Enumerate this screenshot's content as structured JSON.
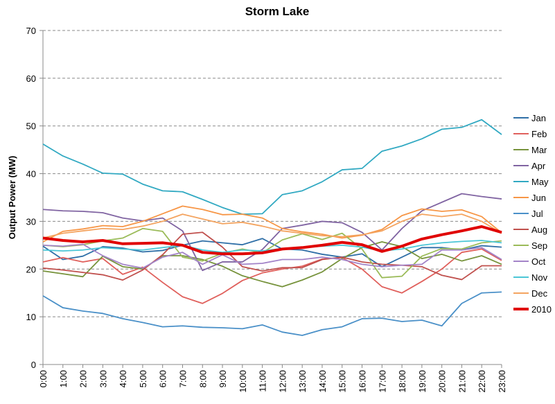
{
  "chart_data": {
    "type": "line",
    "title": "Storm Lake",
    "y_label": "Output Power (MW)",
    "categories": [
      "0:00",
      "1:00",
      "2:00",
      "3:00",
      "4:00",
      "5:00",
      "6:00",
      "7:00",
      "8:00",
      "9:00",
      "10:00",
      "11:00",
      "12:00",
      "13:00",
      "14:00",
      "15:00",
      "16:00",
      "17:00",
      "18:00",
      "19:00",
      "20:00",
      "21:00",
      "22:00",
      "23:00"
    ],
    "ylim": [
      0,
      70
    ],
    "yticks": [
      0,
      10,
      20,
      30,
      40,
      50,
      60,
      70
    ],
    "grid": true,
    "legend": "right",
    "series": [
      {
        "name": "Jan",
        "color": "#2f6fa7",
        "values": [
          24.8,
          22.0,
          22.7,
          24.7,
          24.4,
          23.6,
          23.9,
          25.0,
          25.9,
          25.5,
          25.1,
          26.4,
          24.2,
          24.0,
          23.1,
          22.5,
          23.2,
          20.5,
          22.5,
          24.5,
          24.5,
          24.0,
          24.9,
          24.6
        ]
      },
      {
        "name": "Feb",
        "color": "#e0605c",
        "values": [
          21.5,
          22.4,
          21.5,
          22.2,
          18.9,
          20.4,
          17.2,
          14.2,
          12.8,
          14.9,
          17.6,
          19.2,
          20.0,
          20.6,
          22.1,
          22.4,
          20.0,
          16.3,
          15.0,
          17.4,
          20.0,
          23.5,
          24.2,
          21.8
        ]
      },
      {
        "name": "Mar",
        "color": "#77933c",
        "values": [
          19.6,
          19.0,
          18.4,
          22.7,
          20.5,
          20.0,
          22.8,
          22.8,
          22.0,
          20.6,
          18.6,
          17.4,
          16.3,
          17.7,
          19.4,
          22.2,
          24.5,
          25.7,
          24.7,
          22.2,
          23.1,
          21.7,
          22.8,
          21.0
        ]
      },
      {
        "name": "Apr",
        "color": "#8064a2",
        "values": [
          32.5,
          32.2,
          32.1,
          31.8,
          30.7,
          30.1,
          30.7,
          28.0,
          19.7,
          21.5,
          21.5,
          24.1,
          28.5,
          29.2,
          30.0,
          29.7,
          27.7,
          24.0,
          28.5,
          32.2,
          34.0,
          35.8,
          35.2,
          34.7
        ]
      },
      {
        "name": "May",
        "color": "#31a9c2",
        "values": [
          46.2,
          43.7,
          42.0,
          40.1,
          39.9,
          37.8,
          36.4,
          36.2,
          34.6,
          32.9,
          31.5,
          31.6,
          35.6,
          36.4,
          38.3,
          40.8,
          41.1,
          44.7,
          45.8,
          47.3,
          49.3,
          49.7,
          51.3,
          48.2
        ]
      },
      {
        "name": "Jun",
        "color": "#f79646",
        "values": [
          25.7,
          27.9,
          28.4,
          29.1,
          28.9,
          30.0,
          31.6,
          33.2,
          32.5,
          31.4,
          31.5,
          30.7,
          28.5,
          27.8,
          27.3,
          26.5,
          27.1,
          28.3,
          31.2,
          32.6,
          32.1,
          32.4,
          31.0,
          27.6
        ]
      },
      {
        "name": "Jul",
        "color": "#4a90c8",
        "values": [
          14.4,
          11.9,
          11.2,
          10.7,
          9.6,
          8.8,
          7.9,
          8.1,
          7.8,
          7.7,
          7.5,
          8.3,
          6.8,
          6.1,
          7.3,
          7.9,
          9.6,
          9.7,
          9.0,
          9.3,
          8.1,
          12.8,
          15.0,
          15.2
        ]
      },
      {
        "name": "Aug",
        "color": "#c0504d",
        "values": [
          20.2,
          19.8,
          19.3,
          18.8,
          17.7,
          19.8,
          23.0,
          27.3,
          27.7,
          24.6,
          20.5,
          19.6,
          20.3,
          20.3,
          22.0,
          22.5,
          21.5,
          21.0,
          20.8,
          20.5,
          18.7,
          17.8,
          20.7,
          20.7
        ]
      },
      {
        "name": "Sep",
        "color": "#9bbb59",
        "values": [
          25.0,
          24.7,
          25.1,
          25.9,
          26.5,
          28.5,
          27.9,
          22.5,
          21.7,
          23.3,
          24.2,
          23.4,
          26.1,
          27.4,
          26.2,
          27.5,
          24.2,
          18.2,
          18.5,
          22.7,
          24.3,
          24.2,
          25.5,
          25.9
        ]
      },
      {
        "name": "Oct",
        "color": "#a384c8",
        "values": [
          25.0,
          24.8,
          25.2,
          22.8,
          21.0,
          20.2,
          22.5,
          23.5,
          21.0,
          23.0,
          21.0,
          21.2,
          22.0,
          22.0,
          22.5,
          22.0,
          21.0,
          20.5,
          20.8,
          21.0,
          24.0,
          24.0,
          24.5,
          22.0
        ]
      },
      {
        "name": "Nov",
        "color": "#4bc6d6",
        "values": [
          24.0,
          23.8,
          24.0,
          24.5,
          24.2,
          24.0,
          24.5,
          25.0,
          24.0,
          23.5,
          24.0,
          23.8,
          24.3,
          24.5,
          24.8,
          25.0,
          24.6,
          23.8,
          24.2,
          25.0,
          25.5,
          25.8,
          26.0,
          25.5
        ]
      },
      {
        "name": "Dec",
        "color": "#f4a460",
        "values": [
          26.5,
          27.5,
          28.0,
          28.5,
          28.3,
          29.0,
          30.0,
          31.5,
          30.5,
          29.5,
          29.8,
          29.0,
          28.0,
          27.5,
          27.0,
          26.8,
          27.2,
          28.0,
          30.0,
          31.5,
          31.0,
          31.5,
          30.0,
          27.5
        ]
      },
      {
        "name": "2010",
        "color": "#e00000",
        "width": 4,
        "values": [
          26.5,
          26.0,
          25.7,
          26.0,
          25.3,
          25.4,
          25.5,
          25.0,
          23.5,
          23.2,
          23.2,
          23.4,
          24.2,
          24.5,
          25.0,
          25.6,
          25.1,
          23.7,
          24.8,
          26.3,
          27.2,
          28.0,
          28.9,
          27.7
        ]
      }
    ]
  }
}
